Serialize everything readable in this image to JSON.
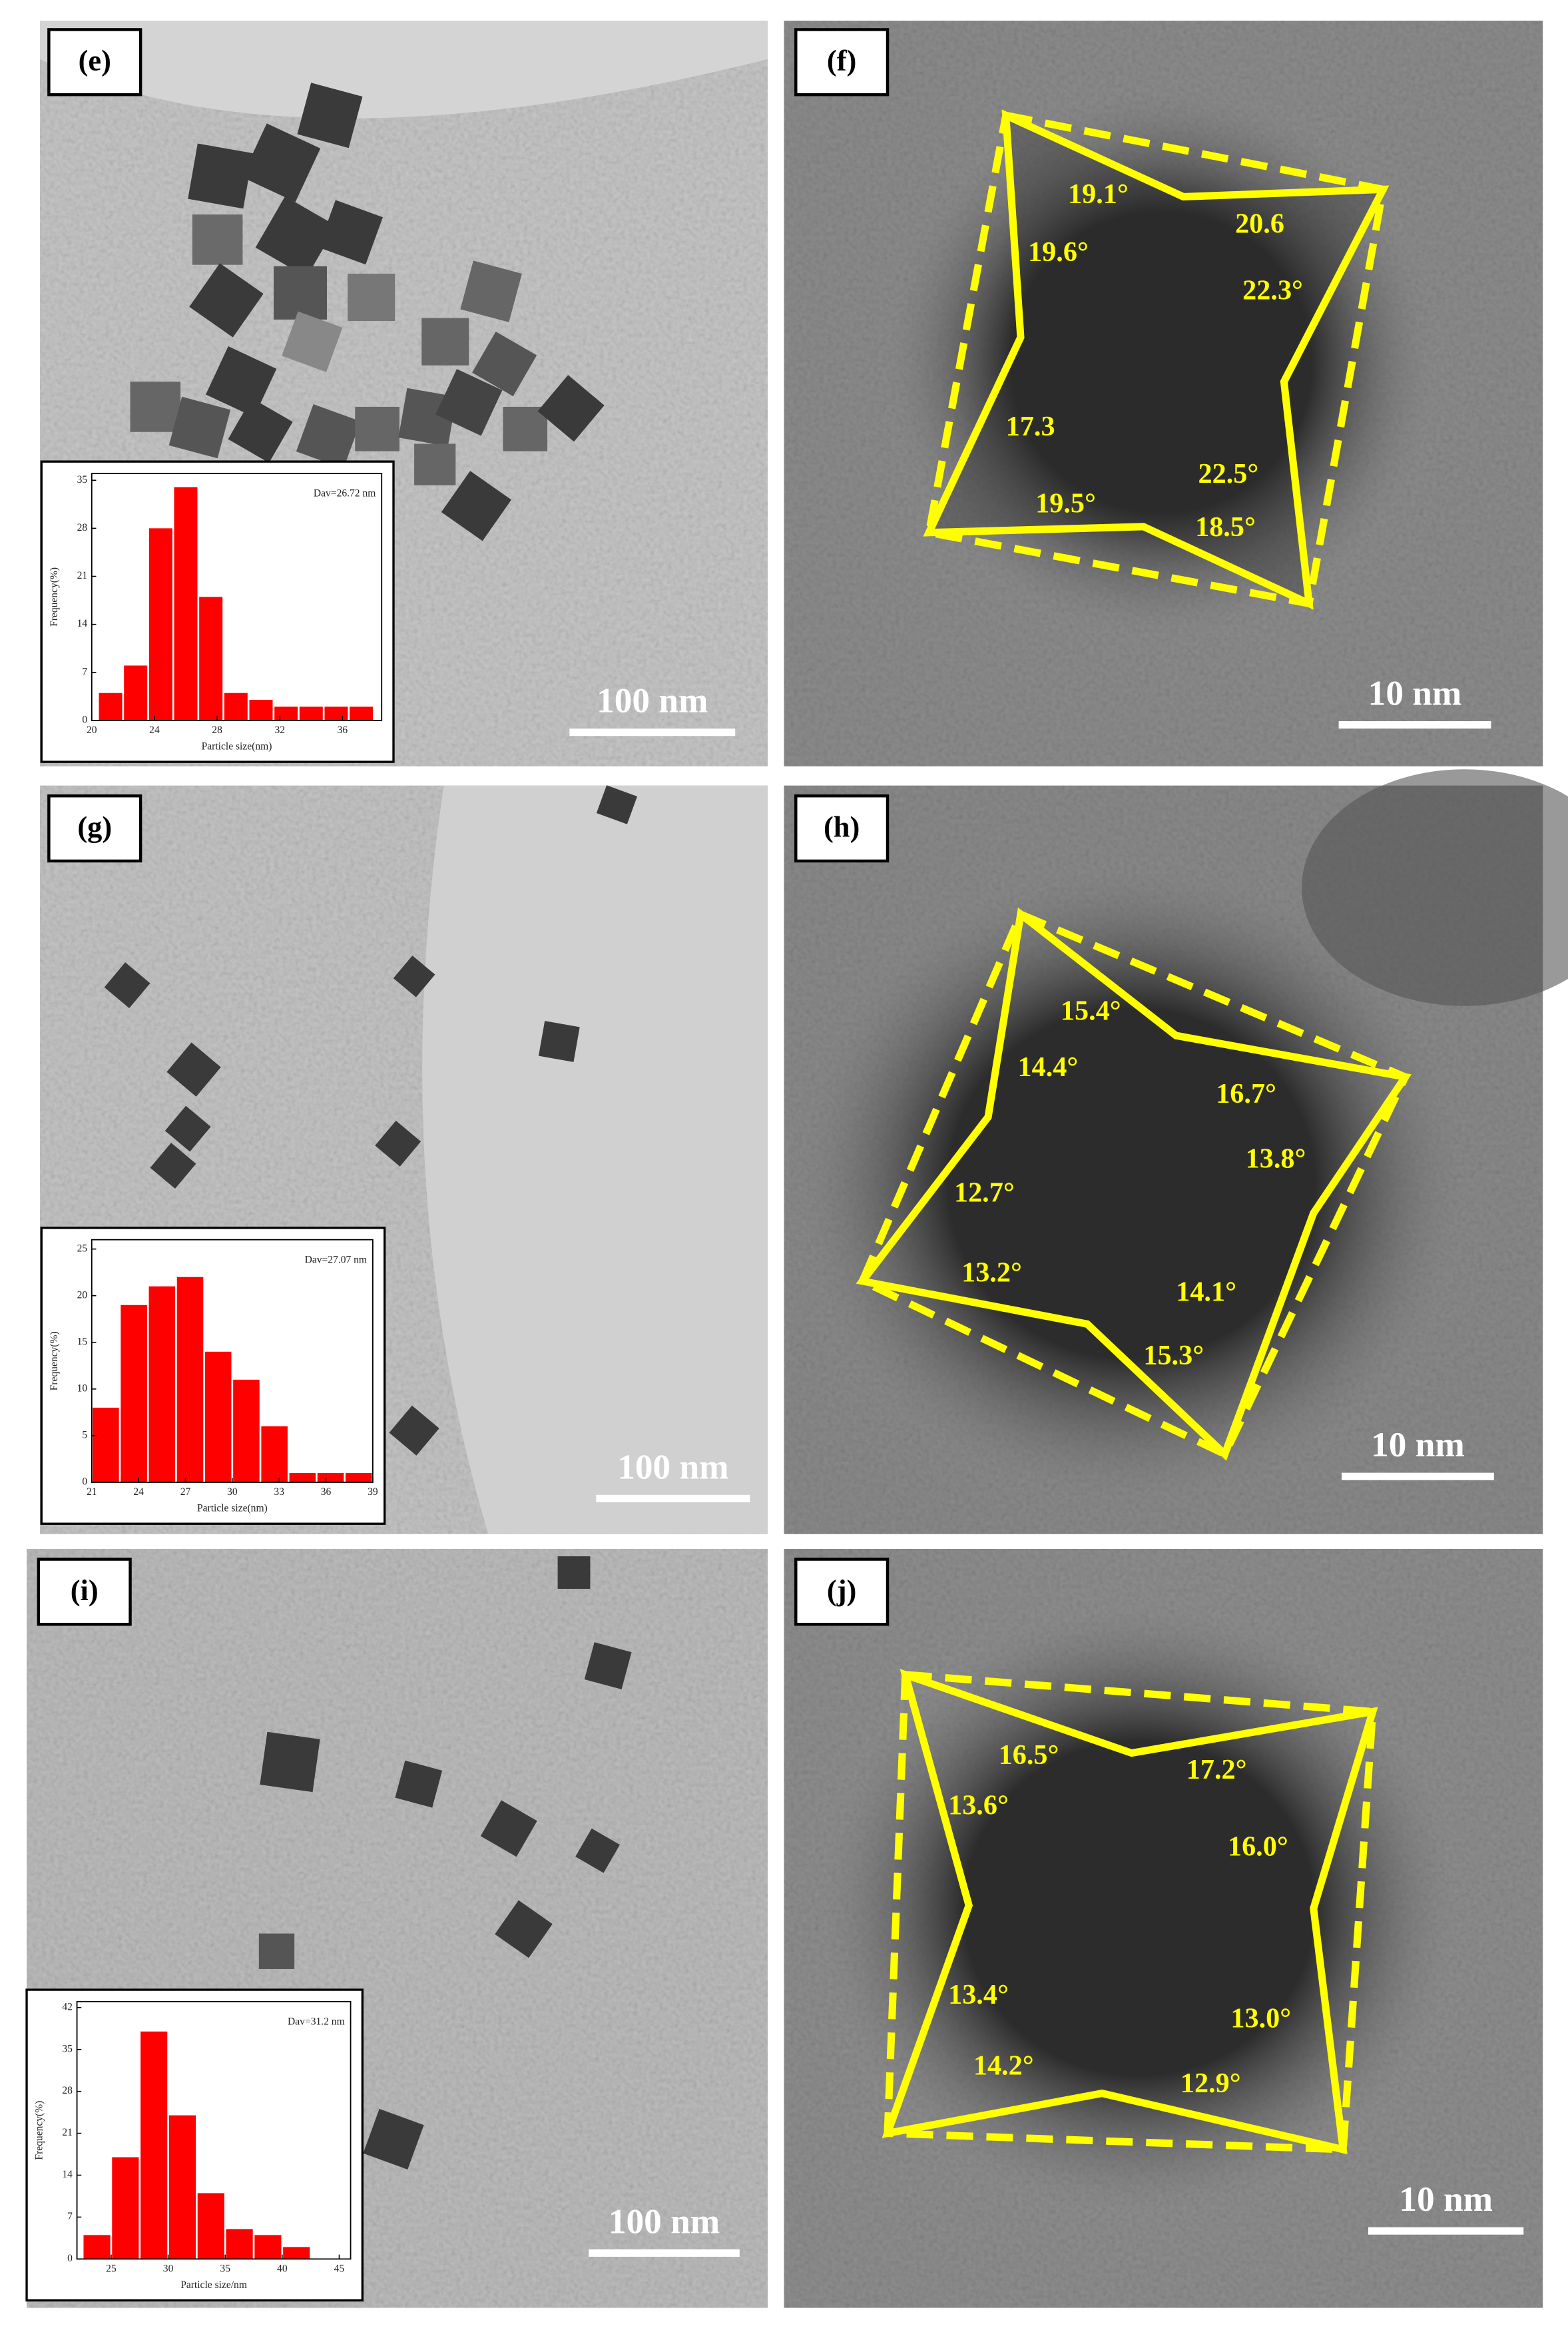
{
  "panels": [
    {
      "label": "(e)",
      "scale_bar": "100 nm"
    },
    {
      "label": "(f)",
      "scale_bar": "10 nm",
      "angles": [
        "19.1°",
        "20.6",
        "19.6°",
        "22.3°",
        "17.3",
        "22.5°",
        "19.5°",
        "18.5°"
      ]
    },
    {
      "label": "(g)",
      "scale_bar": "100 nm"
    },
    {
      "label": "(h)",
      "scale_bar": "10 nm",
      "angles": [
        "15.4°",
        "14.4°",
        "16.7°",
        "13.8°",
        "12.7°",
        "13.2°",
        "14.1°",
        "15.3°"
      ]
    },
    {
      "label": "(i)",
      "scale_bar": "100 nm"
    },
    {
      "label": "(j)",
      "scale_bar": "10 nm",
      "angles": [
        "16.5°",
        "17.2°",
        "13.6°",
        "16.0°",
        "13.4°",
        "13.0°",
        "14.2°",
        "12.9°"
      ]
    }
  ],
  "chart_data": [
    {
      "type": "histogram",
      "annotation": "Dav=26.72 nm",
      "x_label": "Particle size(nm)",
      "y_label": "Frequency(%)",
      "color": "#ff0000",
      "bins": [
        20.4,
        22,
        23.6,
        25.2,
        26.8,
        28.4,
        30,
        31.6,
        33.2,
        34.8,
        36.4,
        38
      ],
      "values": [
        4,
        8,
        28,
        34,
        18,
        4,
        3,
        2,
        2,
        2,
        2
      ],
      "xlim": [
        20,
        38.5
      ],
      "ylim": [
        0,
        36
      ],
      "xticks": [
        20,
        24,
        28,
        32,
        36
      ],
      "yticks": [
        0,
        7,
        14,
        21,
        28,
        35
      ]
    },
    {
      "type": "histogram",
      "annotation": "Dav=27.07 nm",
      "x_label": "Particle size(nm)",
      "y_label": "Frequency(%)",
      "color": "#ff0000",
      "bins": [
        21,
        22.8,
        24.6,
        26.4,
        28.2,
        30,
        31.8,
        33.6,
        35.4,
        37.2,
        39
      ],
      "values": [
        8,
        19,
        21,
        22,
        14,
        11,
        6,
        1,
        1,
        1
      ],
      "xlim": [
        21,
        39
      ],
      "ylim": [
        0,
        26
      ],
      "xticks": [
        21,
        24,
        27,
        30,
        33,
        36,
        39
      ],
      "yticks": [
        0,
        5,
        10,
        15,
        20,
        25
      ]
    },
    {
      "type": "histogram",
      "annotation": "Dav=31.2 nm",
      "x_label": "Particle size/nm",
      "y_label": "Frequency(%)",
      "color": "#ff0000",
      "bins": [
        22.5,
        25,
        27.5,
        30,
        32.5,
        35,
        37.5,
        40,
        42.5
      ],
      "values": [
        4,
        17,
        38,
        24,
        11,
        5,
        4,
        2
      ],
      "xlim": [
        22,
        46
      ],
      "ylim": [
        0,
        43
      ],
      "xticks": [
        25,
        30,
        35,
        40,
        45
      ],
      "yticks": [
        0,
        7,
        14,
        21,
        28,
        35,
        42
      ]
    }
  ]
}
